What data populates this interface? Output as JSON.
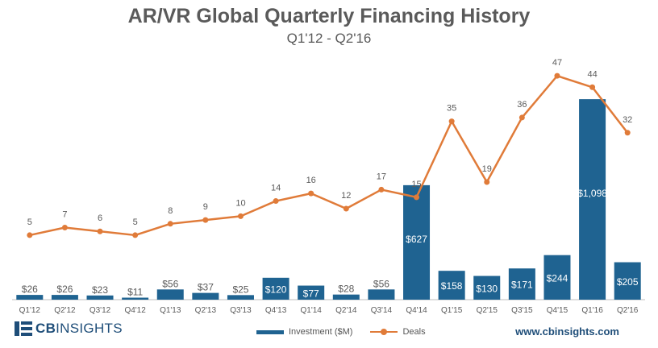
{
  "chart_data": {
    "type": "bar+line",
    "title": "AR/VR Global Quarterly Financing History",
    "subtitle": "Q1'12 - Q2'16",
    "categories": [
      "Q1'12",
      "Q2'12",
      "Q3'12",
      "Q4'12",
      "Q1'13",
      "Q2'13",
      "Q3'13",
      "Q4'13",
      "Q1'14",
      "Q2'14",
      "Q3'14",
      "Q4'14",
      "Q1'15",
      "Q2'15",
      "Q3'15",
      "Q4'15",
      "Q1'16",
      "Q2'16"
    ],
    "series": [
      {
        "name": "Investment ($M)",
        "type": "bar",
        "values": [
          26,
          26,
          23,
          11,
          56,
          37,
          25,
          120,
          77,
          28,
          56,
          627,
          158,
          130,
          171,
          244,
          1098,
          205
        ],
        "labels": [
          "$26",
          "$26",
          "$23",
          "$11",
          "$56",
          "$37",
          "$25",
          "$120",
          "$77",
          "$28",
          "$56",
          "$627",
          "$158",
          "$130",
          "$171",
          "$244",
          "$1,098",
          "$205"
        ]
      },
      {
        "name": "Deals",
        "type": "line",
        "values": [
          5,
          7,
          6,
          5,
          8,
          9,
          10,
          14,
          16,
          12,
          17,
          15,
          35,
          19,
          36,
          47,
          44,
          32
        ]
      }
    ],
    "bar_ylim": [
      0,
      1200
    ],
    "line_ylim": [
      -12,
      50
    ],
    "colors": {
      "bar": "#1f6391",
      "line": "#e07b39",
      "text": "#5a5a5a"
    }
  },
  "legend": {
    "investment": "Investment ($M)",
    "deals": "Deals"
  },
  "footer": {
    "logo_cb": "CB",
    "logo_insights": "INSIGHTS",
    "website": "www.cbinsights.com"
  }
}
